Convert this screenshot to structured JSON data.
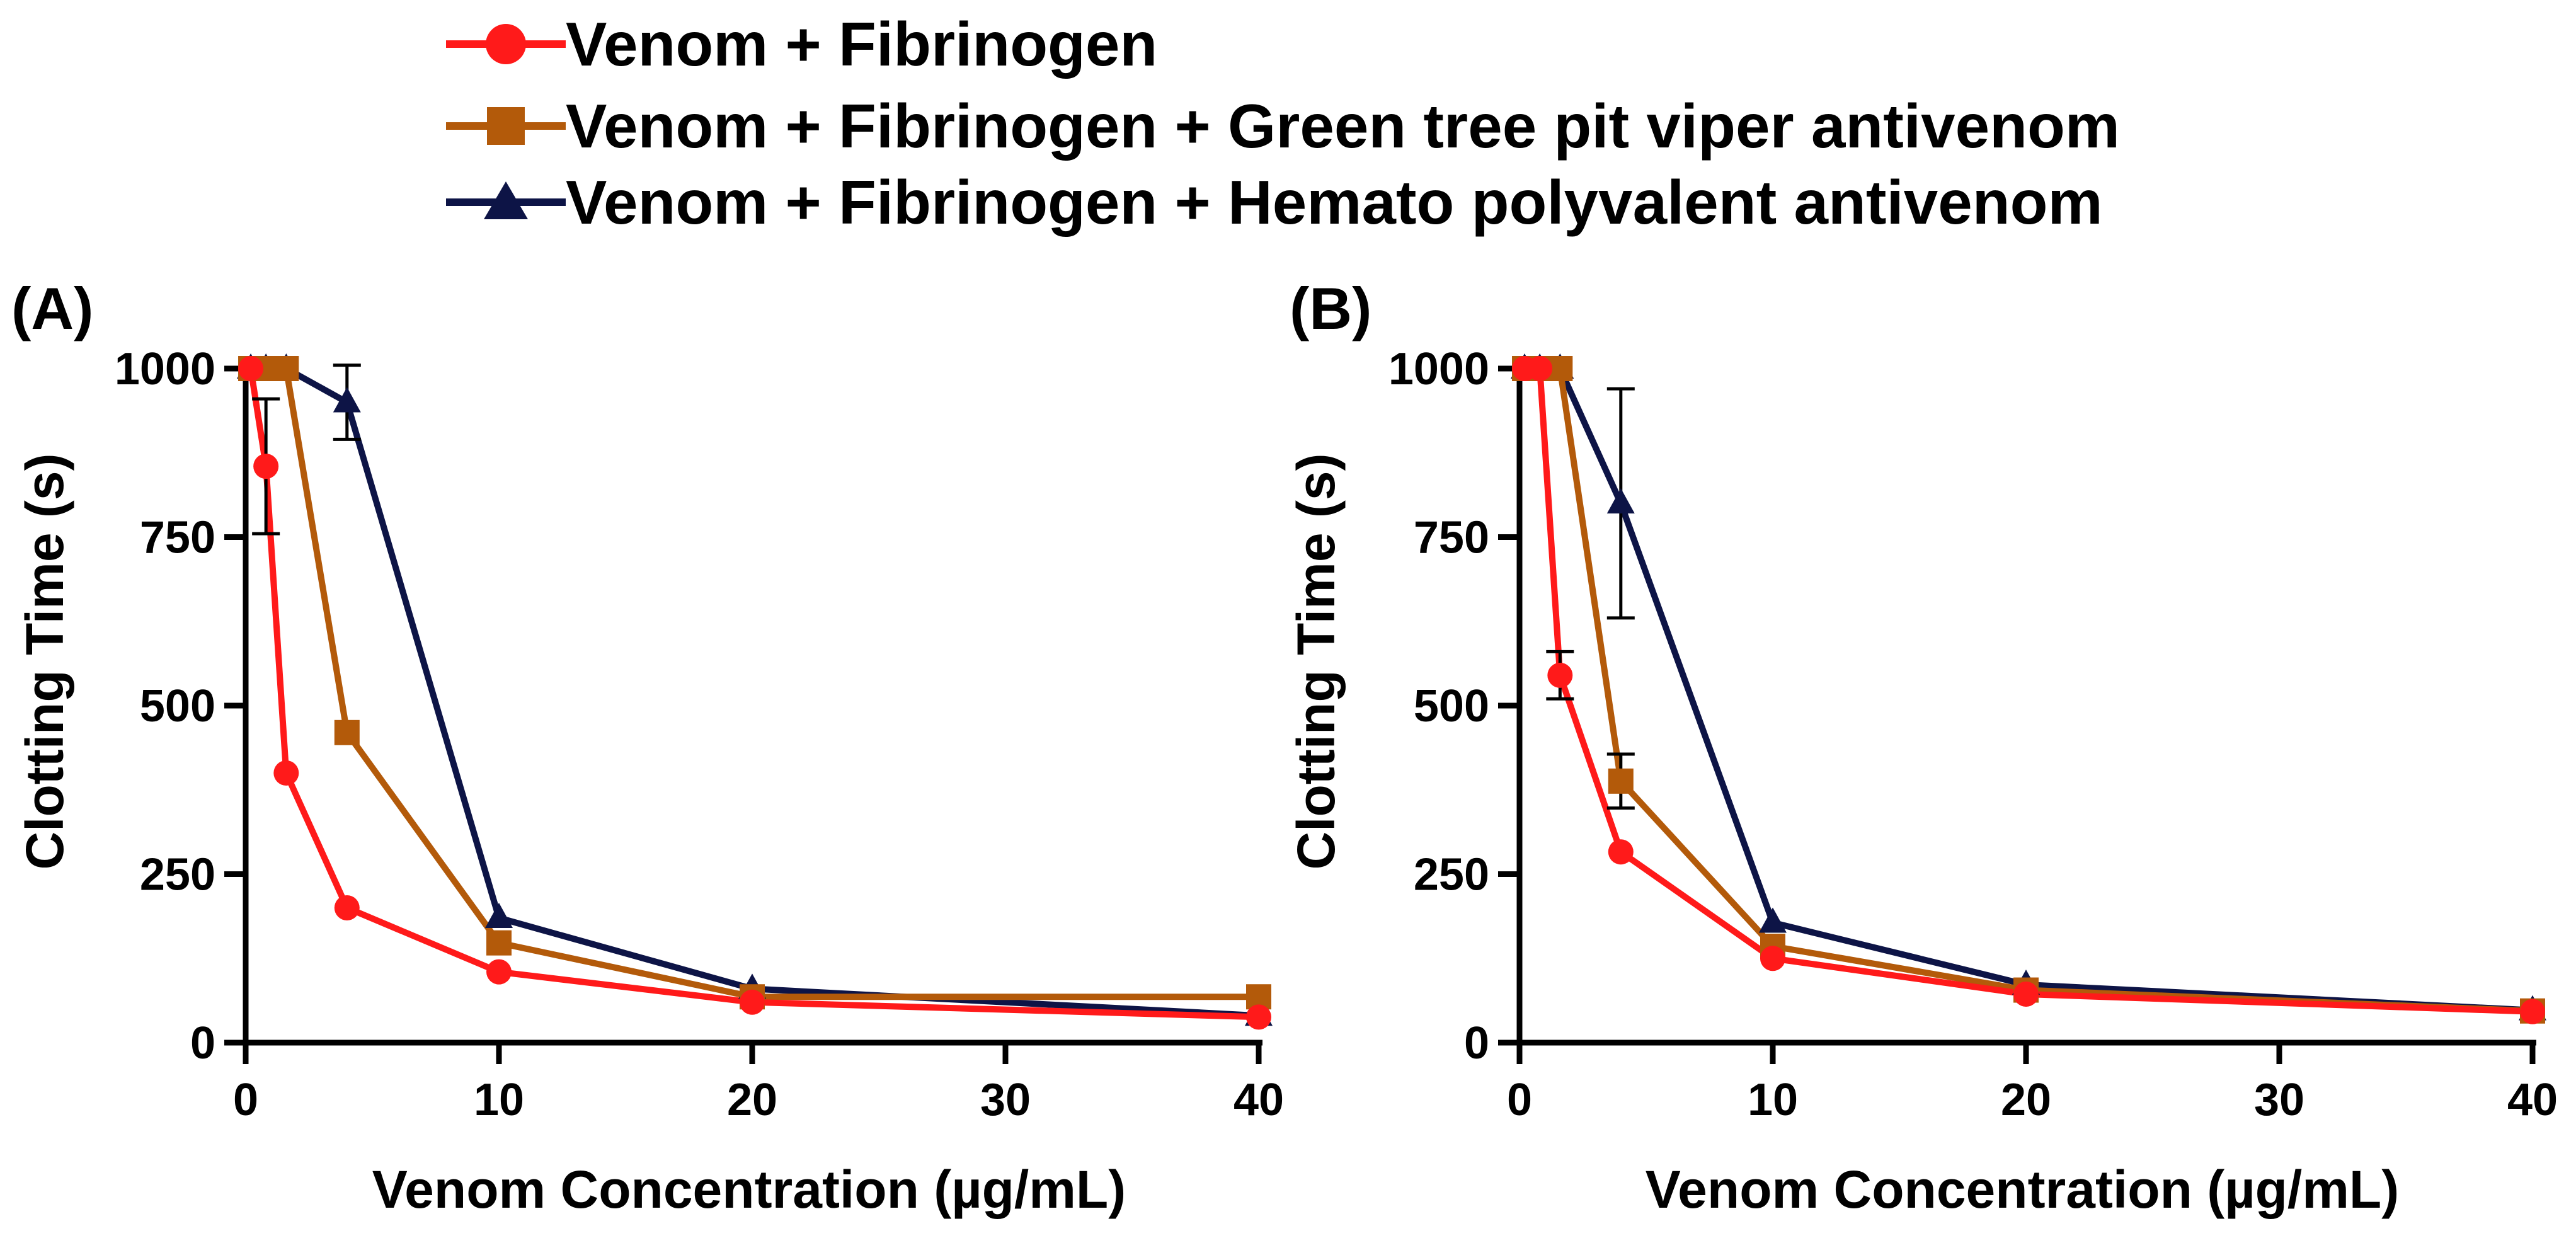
{
  "legend": [
    {
      "name": "Venom + Fibrinogen",
      "color": "#ff1a1a",
      "marker": "circle"
    },
    {
      "name": "Venom + Fibrinogen + Green tree pit viper antivenom",
      "color": "#b35a0a",
      "marker": "square"
    },
    {
      "name": "Venom + Fibrinogen + Hemato polyvalent antivenom",
      "color": "#0d1446",
      "marker": "triangle"
    }
  ],
  "chart_data": [
    {
      "panel": "(A)",
      "type": "line",
      "xlabel": "Venom Concentration (µg/mL)",
      "ylabel": "Clotting Time (s)",
      "xlim": [
        0,
        40
      ],
      "ylim": [
        0,
        1000
      ],
      "xticks": [
        0,
        10,
        20,
        30,
        40
      ],
      "yticks": [
        0,
        250,
        500,
        750,
        1000
      ],
      "series": [
        {
          "name": "Venom + Fibrinogen",
          "color": "#ff1a1a",
          "marker": "circle",
          "x": [
            0.2,
            0.8,
            1.6,
            4,
            10,
            20,
            40
          ],
          "y": [
            1000,
            855,
            400,
            200,
            105,
            60,
            38
          ],
          "err": [
            0,
            100,
            0,
            0,
            0,
            0,
            0
          ]
        },
        {
          "name": "Venom + Fibrinogen + Green tree pit viper antivenom",
          "color": "#b35a0a",
          "marker": "square",
          "x": [
            0.2,
            0.8,
            1.6,
            4,
            10,
            20,
            40
          ],
          "y": [
            1000,
            1000,
            1000,
            460,
            148,
            68,
            68
          ],
          "err": [
            0,
            0,
            0,
            0,
            0,
            0,
            0
          ]
        },
        {
          "name": "Venom + Fibrinogen + Hemato polyvalent antivenom",
          "color": "#0d1446",
          "marker": "triangle",
          "x": [
            0.2,
            0.8,
            1.6,
            4,
            10,
            20,
            40
          ],
          "y": [
            1000,
            1000,
            1000,
            950,
            185,
            80,
            40
          ],
          "err": [
            0,
            0,
            0,
            55,
            0,
            0,
            0
          ]
        }
      ]
    },
    {
      "panel": "(B)",
      "type": "line",
      "xlabel": "Venom Concentration (µg/mL)",
      "ylabel": "Clotting Time (s)",
      "xlim": [
        0,
        40
      ],
      "ylim": [
        0,
        1000
      ],
      "xticks": [
        0,
        10,
        20,
        30,
        40
      ],
      "yticks": [
        0,
        250,
        500,
        750,
        1000
      ],
      "series": [
        {
          "name": "Venom + Fibrinogen",
          "color": "#ff1a1a",
          "marker": "circle",
          "x": [
            0.2,
            0.8,
            1.6,
            4,
            10,
            20,
            40
          ],
          "y": [
            1000,
            1000,
            545,
            283,
            125,
            72,
            46
          ],
          "err": [
            0,
            0,
            35,
            0,
            0,
            0,
            0
          ]
        },
        {
          "name": "Venom + Fibrinogen + Green tree pit viper antivenom",
          "color": "#b35a0a",
          "marker": "square",
          "x": [
            0.2,
            0.8,
            1.6,
            4,
            10,
            20,
            40
          ],
          "y": [
            1000,
            1000,
            1000,
            388,
            143,
            78,
            47
          ],
          "err": [
            0,
            0,
            0,
            40,
            0,
            0,
            0
          ]
        },
        {
          "name": "Venom + Fibrinogen + Hemato polyvalent antivenom",
          "color": "#0d1446",
          "marker": "triangle",
          "x": [
            0.2,
            0.8,
            1.6,
            4,
            10,
            20,
            40
          ],
          "y": [
            1000,
            1000,
            1000,
            800,
            178,
            86,
            48
          ],
          "err": [
            0,
            0,
            0,
            170,
            0,
            0,
            0
          ]
        }
      ]
    }
  ]
}
